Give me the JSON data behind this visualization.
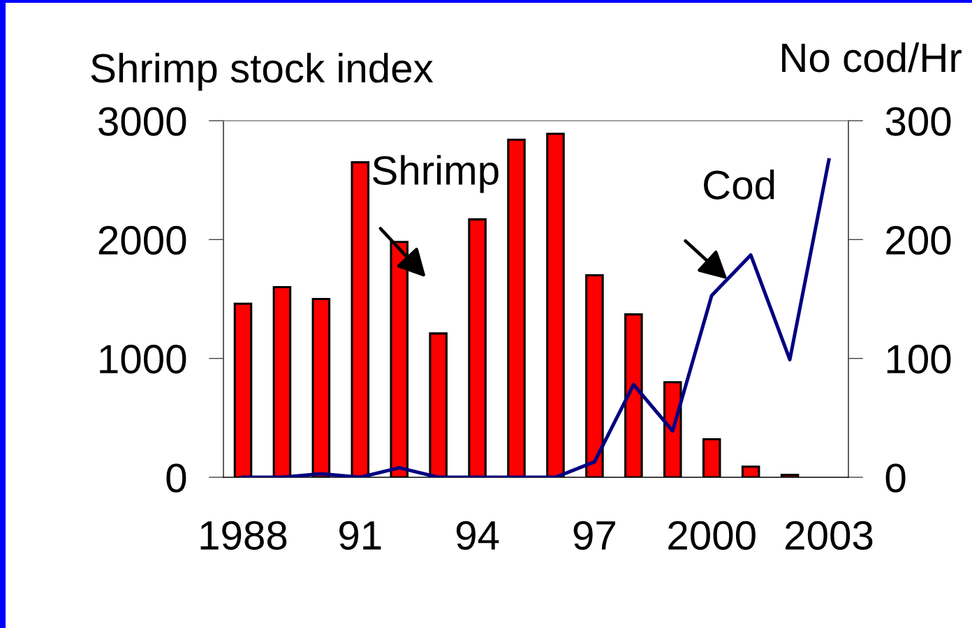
{
  "chart_data": {
    "type": "bar",
    "categories": [
      "1988",
      null,
      null,
      "91",
      null,
      null,
      "94",
      null,
      null,
      "97",
      null,
      null,
      "2000",
      null,
      null,
      "2003"
    ],
    "ylabel": "Shrimp stock index",
    "y2label": "No cod/Hr",
    "ylim": [
      0,
      3000
    ],
    "yticks": [
      0,
      1000,
      2000,
      3000
    ],
    "y2lim": [
      0,
      300
    ],
    "y2ticks": [
      0,
      100,
      200,
      300
    ],
    "series": [
      {
        "name": "Shrimp",
        "color": "#ff0000",
        "values": [
          1460,
          1600,
          1500,
          2650,
          1980,
          1210,
          2170,
          2840,
          2890,
          1700,
          1370,
          800,
          320,
          90,
          20,
          null
        ]
      },
      {
        "type": "line",
        "name": "Cod",
        "color": "#000080",
        "axis": "y2",
        "values": [
          0,
          0,
          3,
          0,
          8,
          0,
          0,
          0,
          0,
          13,
          78,
          39,
          153,
          187,
          99,
          267
        ]
      }
    ]
  }
}
